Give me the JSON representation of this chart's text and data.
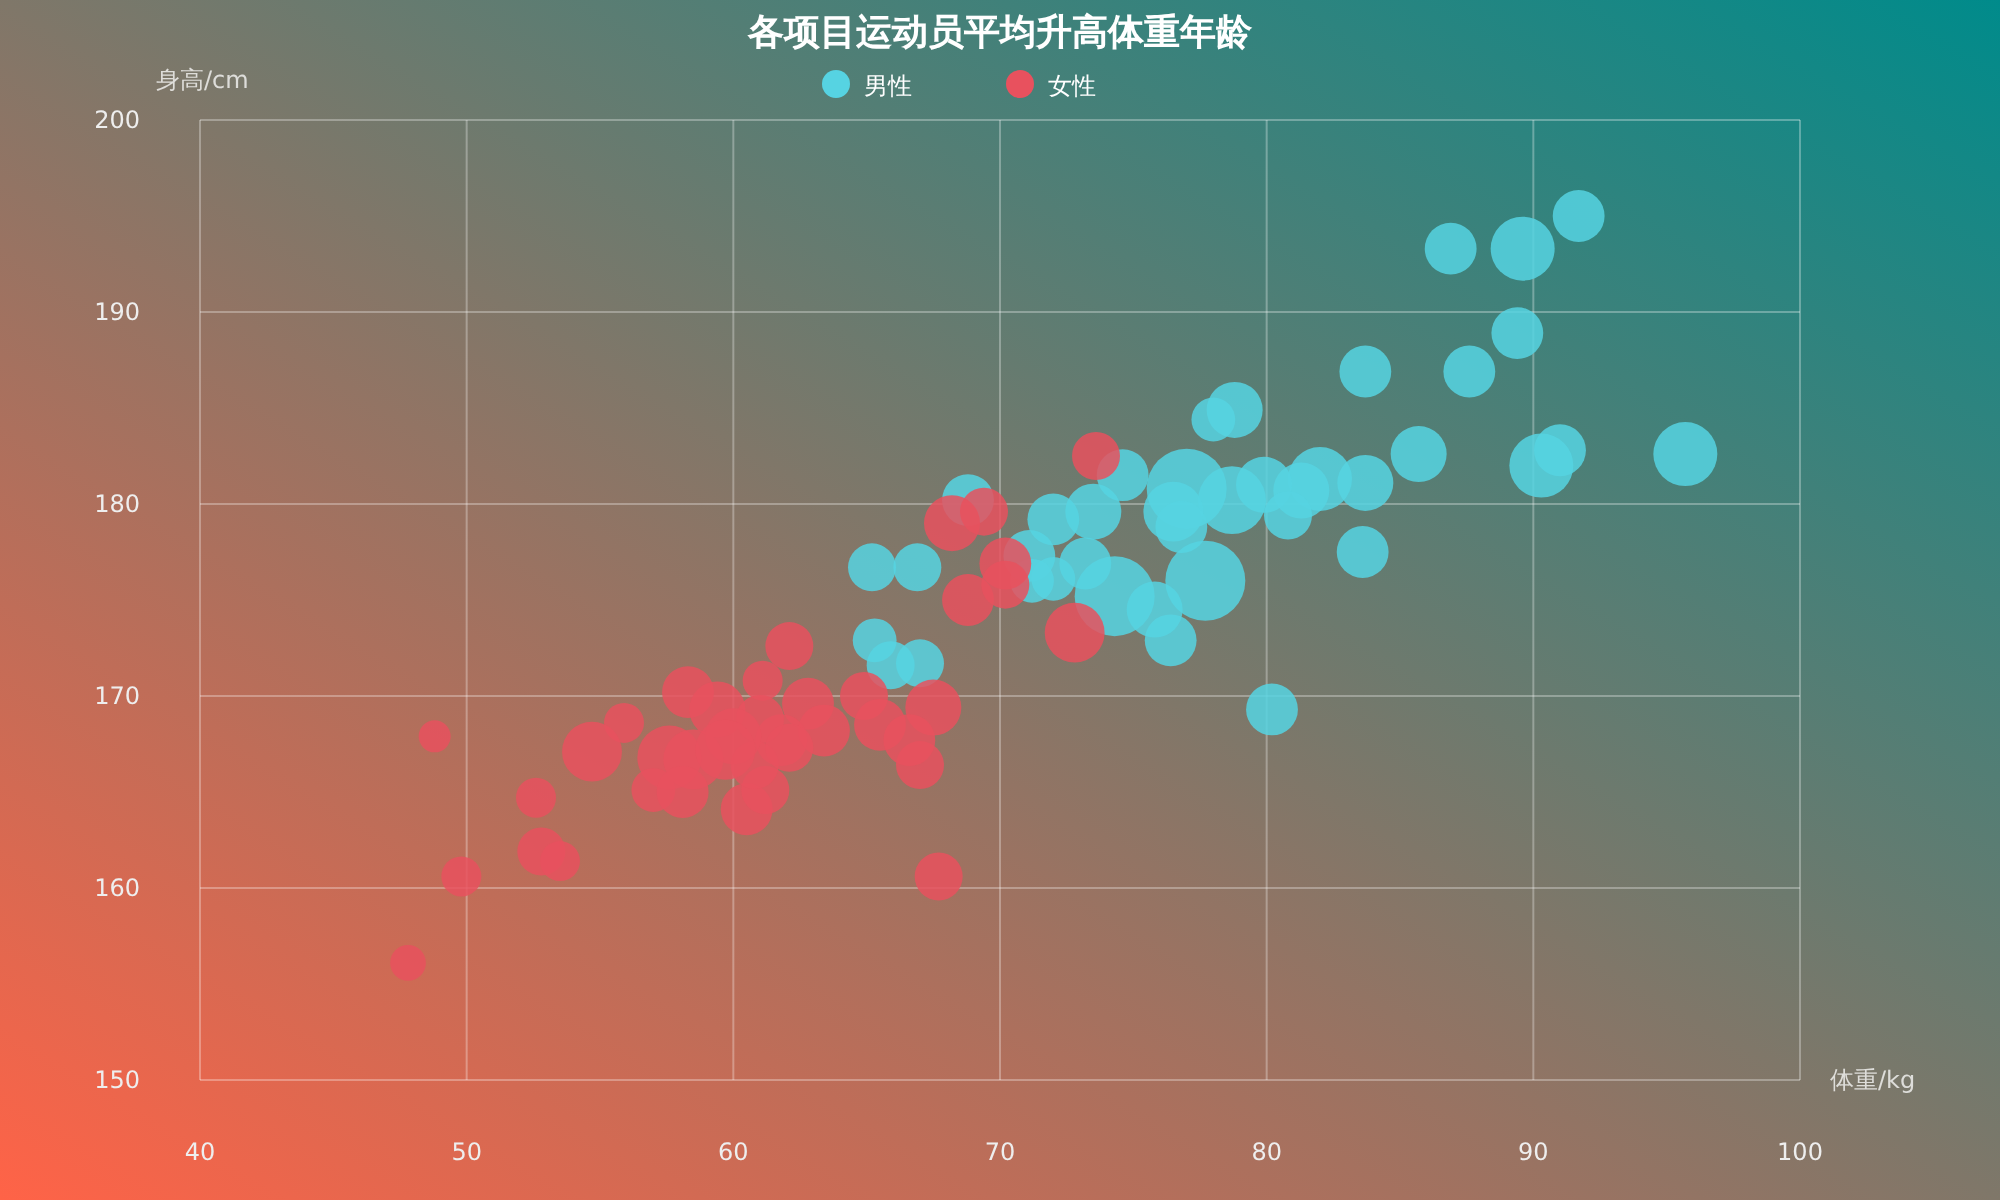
{
  "chart_data": {
    "type": "bubble",
    "title": "各项目运动员平均升高体重年龄",
    "xlabel": "体重/kg",
    "ylabel": "身高/cm",
    "xlim": [
      40,
      100
    ],
    "xticks": [
      40,
      50,
      60,
      70,
      80,
      90,
      100
    ],
    "ylim": [
      150,
      200
    ],
    "yticks": [
      150,
      160,
      170,
      180,
      190,
      200
    ],
    "grid": true,
    "legend": "top",
    "series": [
      {
        "name": "男性",
        "color": "#56d3e2",
        "x": [
          91.7,
          89.6,
          86.9,
          89.4,
          87.6,
          83.7,
          85.7,
          91.0,
          90.3,
          95.7,
          78.8,
          78.0,
          83.7,
          83.6,
          80.2,
          82.0,
          81.3,
          79.9,
          80.8,
          78.7,
          77.0,
          76.5,
          76.8,
          77.7,
          76.4,
          74.3,
          75.8,
          74.6,
          73.5,
          72.0,
          73.2,
          71.1,
          68.8,
          72.0,
          71.2,
          65.2,
          66.9,
          65.3,
          67.0,
          65.9,
          null
        ],
        "values": [
          195.0,
          193.3,
          193.3,
          188.9,
          186.9,
          186.9,
          182.6,
          182.8,
          182.0,
          182.6,
          184.9,
          184.4,
          181.1,
          177.5,
          169.3,
          181.3,
          180.7,
          181.0,
          179.4,
          180.2,
          180.8,
          179.6,
          178.8,
          176.0,
          172.9,
          175.2,
          174.5,
          181.5,
          179.6,
          179.2,
          176.9,
          177.3,
          180.2,
          176.1,
          176.0,
          176.7,
          176.7,
          172.9,
          171.7,
          171.6,
          null
        ],
        "sizes": [
          0.42,
          0.64,
          0.42,
          0.42,
          0.42,
          0.42,
          0.49,
          0.42,
          0.64,
          0.64,
          0.49,
          0.3,
          0.49,
          0.42,
          0.42,
          0.64,
          0.49,
          0.49,
          0.36,
          0.72,
          1,
          0.56,
          0.42,
          1,
          0.42,
          1,
          0.49,
          0.42,
          0.49,
          0.42,
          0.42,
          0.42,
          0.42,
          0.3,
          0.3,
          0.36,
          0.36,
          0.3,
          0.36,
          0.36,
          null
        ]
      },
      {
        "name": "女性",
        "color": "#e8515e",
        "x": [
          73.6,
          68.2,
          69.4,
          68.8,
          70.2,
          70.2,
          72.8,
          67.5,
          67.0,
          67.7,
          62.1,
          61.1,
          58.3,
          55.9,
          54.7,
          48.8,
          52.6,
          49.8,
          52.8,
          53.5,
          47.8,
          57.6,
          58.5,
          57.0,
          58.1,
          60.5,
          61.2,
          62.8,
          61.8,
          60.8,
          63.4,
          64.9,
          65.5,
          66.6,
          59.4,
          61.0,
          60.0,
          62.1,
          59.7
        ],
        "values": [
          182.5,
          179.0,
          179.6,
          175.0,
          176.9,
          175.8,
          173.3,
          169.4,
          166.4,
          160.6,
          172.6,
          170.8,
          170.2,
          168.6,
          167.1,
          167.9,
          164.7,
          160.6,
          161.9,
          161.4,
          156.1,
          166.8,
          166.7,
          165.1,
          165.0,
          164.1,
          165.1,
          169.6,
          167.7,
          166.4,
          168.2,
          170.0,
          168.5,
          167.7,
          169.3,
          168.8,
          167.9,
          167.3,
          167.2
        ],
        "sizes": [
          0.36,
          0.49,
          0.36,
          0.42,
          0.42,
          0.36,
          0.56,
          0.49,
          0.36,
          0.36,
          0.36,
          0.25,
          0.42,
          0.25,
          0.56,
          0.16,
          0.25,
          0.25,
          0.36,
          0.25,
          0.2,
          0.64,
          0.56,
          0.3,
          0.42,
          0.42,
          0.36,
          0.42,
          0.42,
          0.36,
          0.42,
          0.36,
          0.42,
          0.42,
          0.49,
          0.36,
          0.49,
          0.36,
          0.56
        ]
      }
    ]
  }
}
